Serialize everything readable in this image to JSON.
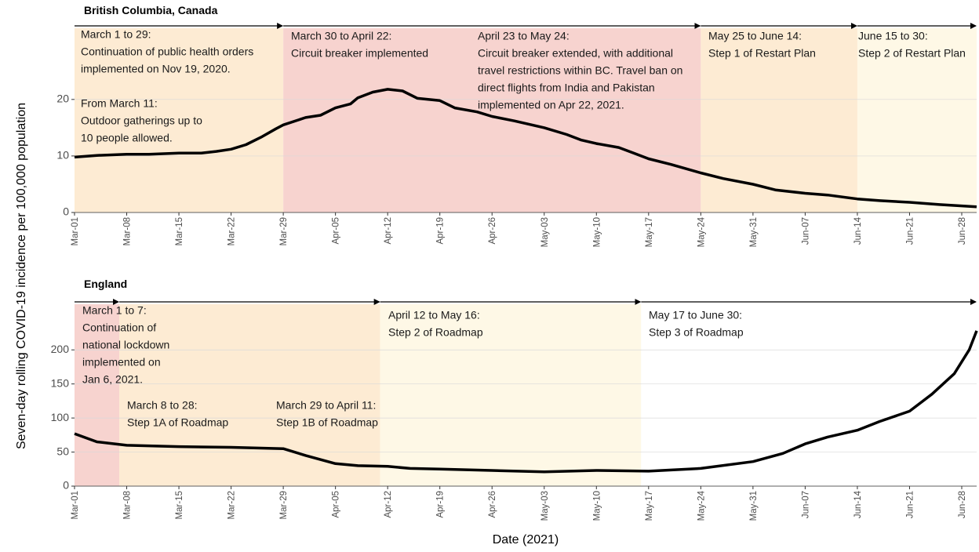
{
  "ylabel": "Seven-day rolling COVID-19 incidence per 100,000 population",
  "xlabel": "Date (2021)",
  "chart_data": [
    {
      "type": "line",
      "title": "British Columbia, Canada",
      "color": "#000000",
      "x": [
        "Mar-01",
        "Mar-04",
        "Mar-08",
        "Mar-11",
        "Mar-15",
        "Mar-18",
        "Mar-20",
        "Mar-22",
        "Mar-24",
        "Mar-26",
        "Mar-28",
        "Mar-29",
        "Apr-01",
        "Apr-03",
        "Apr-05",
        "Apr-07",
        "Apr-08",
        "Apr-10",
        "Apr-12",
        "Apr-14",
        "Apr-16",
        "Apr-19",
        "Apr-21",
        "Apr-24",
        "Apr-26",
        "Apr-29",
        "May-03",
        "May-06",
        "May-08",
        "May-10",
        "May-13",
        "May-15",
        "May-17",
        "May-20",
        "May-24",
        "May-27",
        "May-31",
        "Jun-03",
        "Jun-07",
        "Jun-10",
        "Jun-14",
        "Jun-17",
        "Jun-21",
        "Jun-25",
        "Jun-30"
      ],
      "values": [
        9.8,
        10.1,
        10.3,
        10.3,
        10.5,
        10.5,
        10.8,
        11.2,
        12,
        13.3,
        14.8,
        15.5,
        16.8,
        17.2,
        18.5,
        19.2,
        20.3,
        21.3,
        21.8,
        21.5,
        20.2,
        19.8,
        18.5,
        17.8,
        17,
        16.2,
        15,
        13.8,
        12.8,
        12.2,
        11.5,
        10.5,
        9.5,
        8.5,
        7,
        6,
        5,
        4,
        3.4,
        3.1,
        2.4,
        2.1,
        1.8,
        1.4,
        1
      ],
      "xlim": [
        "Mar-01",
        "Jun-30"
      ],
      "xticks": [
        "Mar-01",
        "Mar-08",
        "Mar-15",
        "Mar-22",
        "Mar-29",
        "Apr-05",
        "Apr-12",
        "Apr-19",
        "Apr-26",
        "May-03",
        "May-10",
        "May-17",
        "May-24",
        "May-31",
        "Jun-07",
        "Jun-14",
        "Jun-21",
        "Jun-28"
      ],
      "ylim": [
        0,
        32.6
      ],
      "yticks": [
        0,
        10,
        20
      ],
      "grid": true,
      "periods": [
        {
          "start": "Mar-01",
          "end": "Mar-29",
          "color": "#fdebd3",
          "notes": [
            [
              "March 1 to 29:",
              "Continuation of public health orders",
              "implemented on Nov 19, 2020."
            ],
            [
              "From March 11:",
              "Outdoor gatherings up to",
              "10 people allowed."
            ]
          ]
        },
        {
          "start": "Mar-29",
          "end": "May-24",
          "color": "#f7d3cf",
          "notes": [
            [
              "March 30 to April 22:",
              "Circuit breaker implemented"
            ],
            [
              "April 23 to May 24:",
              "Circuit breaker extended, with additional",
              "travel restrictions within BC. Travel ban on",
              "direct flights from India and Pakistan",
              "implemented on Apr 22, 2021."
            ]
          ]
        },
        {
          "start": "May-24",
          "end": "Jun-14",
          "color": "#fdebd3",
          "notes": [
            [
              "May 25 to June 14:",
              "Step 1 of Restart Plan"
            ]
          ]
        },
        {
          "start": "Jun-14",
          "end": "Jun-30",
          "color": "#fef8e6",
          "notes": [
            [
              "June 15 to 30:",
              "Step 2 of Restart Plan"
            ]
          ]
        }
      ]
    },
    {
      "type": "line",
      "title": "England",
      "color": "#000000",
      "x": [
        "Mar-01",
        "Mar-04",
        "Mar-08",
        "Mar-15",
        "Mar-22",
        "Mar-29",
        "Apr-01",
        "Apr-05",
        "Apr-08",
        "Apr-12",
        "Apr-15",
        "Apr-19",
        "Apr-26",
        "May-03",
        "May-10",
        "May-17",
        "May-24",
        "May-31",
        "Jun-04",
        "Jun-07",
        "Jun-10",
        "Jun-14",
        "Jun-17",
        "Jun-21",
        "Jun-24",
        "Jun-27",
        "Jun-29",
        "Jun-30"
      ],
      "values": [
        77,
        65,
        60,
        58,
        57,
        55,
        45,
        33,
        30,
        29,
        26,
        25,
        23,
        21,
        23,
        22,
        26,
        36,
        48,
        62,
        72,
        82,
        95,
        110,
        135,
        165,
        200,
        228
      ],
      "xlim": [
        "Mar-01",
        "Jun-30"
      ],
      "xticks": [
        "Mar-01",
        "Mar-08",
        "Mar-15",
        "Mar-22",
        "Mar-29",
        "Apr-05",
        "Apr-12",
        "Apr-19",
        "Apr-26",
        "May-03",
        "May-10",
        "May-17",
        "May-24",
        "May-31",
        "Jun-07",
        "Jun-14",
        "Jun-21",
        "Jun-28"
      ],
      "ylim": [
        0,
        267
      ],
      "yticks": [
        0,
        50,
        100,
        150,
        200
      ],
      "grid": true,
      "periods": [
        {
          "start": "Mar-01",
          "end": "Mar-07",
          "color": "#f7d3cf",
          "notes": [
            [
              "March 1 to 7:",
              "Continuation of",
              "national lockdown",
              "implemented on",
              "Jan 6, 2021."
            ]
          ]
        },
        {
          "start": "Mar-07",
          "end": "Apr-11",
          "color": "#fdebd3",
          "notes": [
            [
              "March 8 to 28:",
              "Step 1A of Roadmap"
            ],
            [
              "March 29 to April 11:",
              "Step 1B of Roadmap"
            ]
          ]
        },
        {
          "start": "Apr-11",
          "end": "May-16",
          "color": "#fef8e6",
          "notes": [
            [
              "April 12 to May 16:",
              "Step 2 of Roadmap"
            ]
          ]
        },
        {
          "start": "May-16",
          "end": "Jun-30",
          "color": "#ffffff",
          "notes": [
            [
              "May 17 to June 30:",
              "Step 3 of Roadmap"
            ]
          ]
        }
      ]
    }
  ]
}
